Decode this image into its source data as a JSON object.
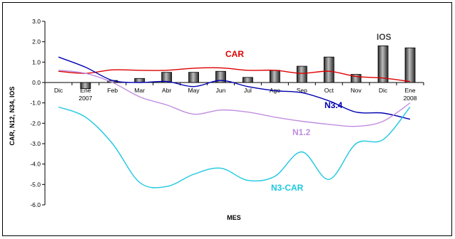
{
  "chart_data": {
    "type": "line",
    "xlabel": "MES",
    "ylabel": "CAR, N12, N34, IOS",
    "ylim": [
      -6.0,
      3.0
    ],
    "yticks": [
      "3.0",
      "2.0",
      "1.0",
      "0.0",
      "-1.0",
      "-2.0",
      "-3.0",
      "-4.0",
      "-5.0",
      "-6.0"
    ],
    "categories": [
      {
        "line1": "Dic",
        "line2": ""
      },
      {
        "line1": "Ene",
        "line2": "2007"
      },
      {
        "line1": "Feb",
        "line2": ""
      },
      {
        "line1": "Mar",
        "line2": ""
      },
      {
        "line1": "Abr",
        "line2": ""
      },
      {
        "line1": "May",
        "line2": ""
      },
      {
        "line1": "Jun",
        "line2": ""
      },
      {
        "line1": "Jul",
        "line2": ""
      },
      {
        "line1": "Ago",
        "line2": ""
      },
      {
        "line1": "Sep",
        "line2": ""
      },
      {
        "line1": "Oct",
        "line2": ""
      },
      {
        "line1": "Nov",
        "line2": ""
      },
      {
        "line1": "Dic",
        "line2": ""
      },
      {
        "line1": "Ene",
        "line2": "2008"
      }
    ],
    "grid": false,
    "legend": "none",
    "bar_series": {
      "name": "IOS",
      "color": "#444444",
      "values": [
        0.0,
        -0.3,
        0.1,
        0.2,
        0.5,
        0.5,
        0.55,
        0.25,
        0.6,
        0.8,
        1.25,
        0.4,
        1.8,
        1.7
      ]
    },
    "series": [
      {
        "name": "CAR",
        "color": "#dd0000",
        "values": [
          0.55,
          0.45,
          0.62,
          0.6,
          0.6,
          0.7,
          0.72,
          0.6,
          0.6,
          0.45,
          0.55,
          0.3,
          0.22,
          0.05
        ]
      },
      {
        "name": "N3.4",
        "color": "#0000b0",
        "values": [
          1.25,
          0.75,
          0.1,
          0.0,
          0.05,
          -0.2,
          0.1,
          -0.2,
          -0.4,
          -0.5,
          -0.9,
          -1.45,
          -1.5,
          -1.8
        ]
      },
      {
        "name": "N1.2",
        "color": "#c08ee0",
        "values": [
          0.6,
          0.45,
          0.0,
          -0.7,
          -1.1,
          -1.55,
          -1.35,
          -1.45,
          -1.7,
          -1.9,
          -2.05,
          -2.15,
          -1.9,
          -1.0
        ]
      },
      {
        "name": "N3-CAR",
        "color": "#1ec8e0",
        "values": [
          -1.2,
          -1.7,
          -3.0,
          -4.9,
          -5.1,
          -4.5,
          -4.2,
          -4.8,
          -4.6,
          -3.4,
          -4.75,
          -3.0,
          -2.8,
          -1.2
        ]
      }
    ]
  }
}
